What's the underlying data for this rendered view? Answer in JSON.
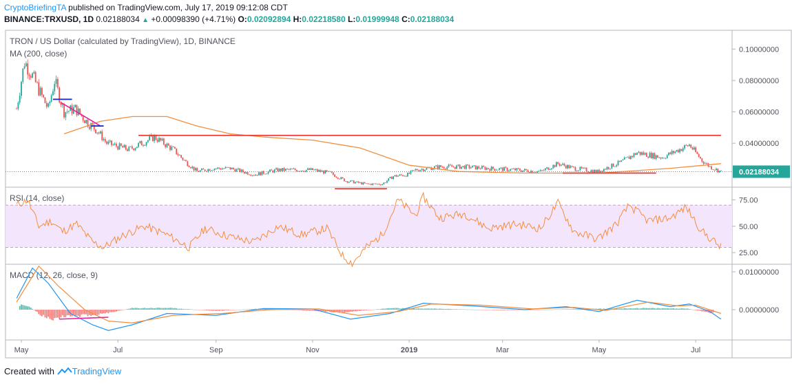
{
  "header": {
    "author": "CryptoBriefingTA",
    "published_text": "published on TradingView.com, July 17, 2019 09:12:08 CDT",
    "symbol_line": "BINANCE:TRXUSD, 1D",
    "last_price": "0.02188034",
    "change": "+0.00098390 (+4.71%)",
    "o_label": "O:",
    "o_value": "0.02092894",
    "h_label": "H:",
    "h_value": "0.02218580",
    "l_label": "L:",
    "l_value": "0.01999948",
    "c_label": "C:",
    "c_value": "0.02188034"
  },
  "footer": {
    "created_with": "Created with",
    "brand": "TradingView"
  },
  "colors": {
    "up": "#26a69a",
    "down": "#ef5350",
    "ma": "#f48d3c",
    "rsi": "#f48d3c",
    "macd": "#2196f3",
    "signal": "#f48d3c",
    "resistance": "#e53935",
    "trend_pink": "#e91e9c",
    "trend_blue": "#1e2bd8",
    "rsi_band": "#f3e5fb"
  },
  "chart_data": [
    {
      "type": "candlestick",
      "title": "TRON / US Dollar (calculated by TradingView), 1D, BINANCE",
      "indicator": "MA (200, close)",
      "y_ticks": [
        "0.10000000",
        "0.08000000",
        "0.06000000",
        "0.04000000"
      ],
      "ylim": [
        0.012,
        0.112
      ],
      "last_price_label": "0.02188034",
      "x_labels": [
        "May",
        "Jul",
        "Sep",
        "Nov",
        "2019",
        "Mar",
        "May",
        "Jul"
      ],
      "price_path": [
        [
          "2018-04-28",
          0.062
        ],
        [
          "2018-05-03",
          0.092
        ],
        [
          "2018-05-07",
          0.085
        ],
        [
          "2018-05-13",
          0.072
        ],
        [
          "2018-05-18",
          0.062
        ],
        [
          "2018-05-22",
          0.08
        ],
        [
          "2018-05-28",
          0.06
        ],
        [
          "2018-06-04",
          0.062
        ],
        [
          "2018-06-12",
          0.053
        ],
        [
          "2018-06-18",
          0.048
        ],
        [
          "2018-06-24",
          0.04
        ],
        [
          "2018-07-01",
          0.038
        ],
        [
          "2018-07-08",
          0.036
        ],
        [
          "2018-07-16",
          0.04
        ],
        [
          "2018-07-24",
          0.044
        ],
        [
          "2018-08-05",
          0.036
        ],
        [
          "2018-08-13",
          0.028
        ],
        [
          "2018-08-20",
          0.022
        ],
        [
          "2018-08-30",
          0.024
        ],
        [
          "2018-09-10",
          0.024
        ],
        [
          "2018-09-25",
          0.02
        ],
        [
          "2018-10-10",
          0.023
        ],
        [
          "2018-10-20",
          0.023
        ],
        [
          "2018-11-01",
          0.023
        ],
        [
          "2018-11-12",
          0.021
        ],
        [
          "2018-11-22",
          0.016
        ],
        [
          "2018-12-05",
          0.014
        ],
        [
          "2018-12-15",
          0.014
        ],
        [
          "2018-12-22",
          0.019
        ],
        [
          "2018-12-31",
          0.02
        ],
        [
          "2019-01-05",
          0.023
        ],
        [
          "2019-01-20",
          0.025
        ],
        [
          "2019-02-05",
          0.025
        ],
        [
          "2019-02-20",
          0.024
        ],
        [
          "2019-03-10",
          0.023
        ],
        [
          "2019-03-25",
          0.022
        ],
        [
          "2019-04-05",
          0.027
        ],
        [
          "2019-04-15",
          0.024
        ],
        [
          "2019-04-30",
          0.022
        ],
        [
          "2019-05-15",
          0.028
        ],
        [
          "2019-05-25",
          0.034
        ],
        [
          "2019-06-10",
          0.031
        ],
        [
          "2019-06-27",
          0.039
        ],
        [
          "2019-07-05",
          0.029
        ],
        [
          "2019-07-10",
          0.025
        ],
        [
          "2019-07-17",
          0.02188
        ]
      ],
      "ma_path": [
        [
          "2018-05-28",
          0.046
        ],
        [
          "2018-06-20",
          0.054
        ],
        [
          "2018-07-10",
          0.057
        ],
        [
          "2018-08-01",
          0.057
        ],
        [
          "2018-08-20",
          0.051
        ],
        [
          "2018-09-10",
          0.046
        ],
        [
          "2018-10-01",
          0.044
        ],
        [
          "2018-11-01",
          0.042
        ],
        [
          "2018-12-01",
          0.037
        ],
        [
          "2019-01-01",
          0.026
        ],
        [
          "2019-02-01",
          0.022
        ],
        [
          "2019-03-15",
          0.021
        ],
        [
          "2019-05-01",
          0.021
        ],
        [
          "2019-06-15",
          0.024
        ],
        [
          "2019-07-17",
          0.027
        ]
      ],
      "annotations": [
        {
          "kind": "resistance",
          "from": "2018-07-14",
          "to": "2019-07-17",
          "value": 0.045
        },
        {
          "kind": "support",
          "from": "2018-11-15",
          "to": "2018-12-18",
          "value": 0.011
        },
        {
          "kind": "support",
          "from": "2019-04-08",
          "to": "2019-06-06",
          "value": 0.021
        },
        {
          "kind": "trend",
          "from": [
            "2018-05-26",
            0.066
          ],
          "to": [
            "2018-06-20",
            0.051
          ]
        },
        {
          "kind": "level",
          "from": "2018-05-21",
          "to": "2018-06-02",
          "value": 0.068
        },
        {
          "kind": "level",
          "from": "2018-06-14",
          "to": "2018-06-22",
          "value": 0.051
        }
      ]
    },
    {
      "type": "line",
      "title": "RSI (14, close)",
      "y_ticks": [
        "75.00",
        "50.00",
        "25.00"
      ],
      "band": [
        30,
        70
      ],
      "ylim": [
        14,
        87
      ],
      "points": [
        [
          "2018-04-28",
          70
        ],
        [
          "2018-05-05",
          75
        ],
        [
          "2018-05-12",
          50
        ],
        [
          "2018-05-20",
          55
        ],
        [
          "2018-05-27",
          45
        ],
        [
          "2018-06-05",
          52
        ],
        [
          "2018-06-15",
          35
        ],
        [
          "2018-06-22",
          30
        ],
        [
          "2018-07-05",
          42
        ],
        [
          "2018-07-18",
          50
        ],
        [
          "2018-08-01",
          42
        ],
        [
          "2018-08-15",
          30
        ],
        [
          "2018-08-25",
          48
        ],
        [
          "2018-09-10",
          40
        ],
        [
          "2018-09-25",
          35
        ],
        [
          "2018-10-10",
          50
        ],
        [
          "2018-10-25",
          42
        ],
        [
          "2018-11-10",
          48
        ],
        [
          "2018-11-20",
          22
        ],
        [
          "2018-11-26",
          15
        ],
        [
          "2018-12-05",
          30
        ],
        [
          "2018-12-15",
          42
        ],
        [
          "2018-12-25",
          75
        ],
        [
          "2019-01-05",
          60
        ],
        [
          "2019-01-10",
          78
        ],
        [
          "2019-01-20",
          58
        ],
        [
          "2019-02-05",
          62
        ],
        [
          "2019-02-20",
          48
        ],
        [
          "2019-03-10",
          52
        ],
        [
          "2019-03-25",
          48
        ],
        [
          "2019-04-05",
          72
        ],
        [
          "2019-04-15",
          45
        ],
        [
          "2019-04-30",
          38
        ],
        [
          "2019-05-12",
          52
        ],
        [
          "2019-05-20",
          70
        ],
        [
          "2019-06-01",
          55
        ],
        [
          "2019-06-15",
          58
        ],
        [
          "2019-06-25",
          68
        ],
        [
          "2019-07-05",
          45
        ],
        [
          "2019-07-17",
          30
        ]
      ]
    },
    {
      "type": "line",
      "title": "MACD (12, 26, close, 9)",
      "y_ticks": [
        "0.01000000",
        "0.00000000"
      ],
      "ylim": [
        -0.008,
        0.012
      ],
      "series": [
        {
          "points": [
            [
              "2018-04-28",
              0.003
            ],
            [
              "2018-05-08",
              0.011
            ],
            [
              "2018-05-18",
              0.007
            ],
            [
              "2018-06-01",
              -0.001
            ],
            [
              "2018-06-15",
              -0.004
            ],
            [
              "2018-06-25",
              -0.0055
            ],
            [
              "2018-07-10",
              -0.004
            ],
            [
              "2018-08-01",
              -0.001
            ],
            [
              "2018-09-01",
              -0.0015
            ],
            [
              "2018-10-01",
              0.0003
            ],
            [
              "2018-11-01",
              0.0002
            ],
            [
              "2018-11-25",
              -0.0025
            ],
            [
              "2018-12-20",
              -0.001
            ],
            [
              "2019-01-10",
              0.0017
            ],
            [
              "2019-02-10",
              0.001
            ],
            [
              "2019-03-15",
              0.0
            ],
            [
              "2019-04-10",
              0.0008
            ],
            [
              "2019-05-01",
              -0.0005
            ],
            [
              "2019-05-25",
              0.0025
            ],
            [
              "2019-06-15",
              0.0008
            ],
            [
              "2019-06-27",
              0.0015
            ],
            [
              "2019-07-10",
              -0.0005
            ],
            [
              "2019-07-17",
              -0.0025
            ]
          ]
        },
        {
          "points": [
            [
              "2018-04-28",
              0.002
            ],
            [
              "2018-05-12",
              0.0115
            ],
            [
              "2018-05-25",
              0.006
            ],
            [
              "2018-06-10",
              0.0
            ],
            [
              "2018-06-25",
              -0.003
            ],
            [
              "2018-07-10",
              -0.0035
            ],
            [
              "2018-08-05",
              -0.0015
            ],
            [
              "2018-09-05",
              -0.001
            ],
            [
              "2018-10-05",
              0.0
            ],
            [
              "2018-11-05",
              0.0002
            ],
            [
              "2018-11-30",
              -0.0015
            ],
            [
              "2018-12-25",
              -0.0005
            ],
            [
              "2019-01-15",
              0.0015
            ],
            [
              "2019-02-15",
              0.0012
            ],
            [
              "2019-03-20",
              0.0002
            ],
            [
              "2019-04-15",
              0.0006
            ],
            [
              "2019-05-05",
              -0.0002
            ],
            [
              "2019-06-01",
              0.002
            ],
            [
              "2019-06-20",
              0.001
            ],
            [
              "2019-07-01",
              0.0012
            ],
            [
              "2019-07-17",
              -0.001
            ]
          ]
        }
      ],
      "histogram": [
        [
          "2018-04-30",
          0.0015
        ],
        [
          "2018-05-06",
          0.001
        ],
        [
          "2018-05-14",
          -0.002
        ],
        [
          "2018-05-22",
          -0.003
        ],
        [
          "2018-05-30",
          -0.002
        ],
        [
          "2018-06-07",
          -0.002
        ],
        [
          "2018-06-20",
          -0.0015
        ],
        [
          "2018-07-10",
          0.0005
        ],
        [
          "2018-08-01",
          0.0006
        ],
        [
          "2018-09-01",
          -0.0004
        ],
        [
          "2018-10-01",
          0.0004
        ],
        [
          "2018-11-20",
          -0.0009
        ],
        [
          "2018-12-20",
          0.0005
        ],
        [
          "2019-01-20",
          0.0003
        ],
        [
          "2019-03-01",
          -0.0002
        ],
        [
          "2019-05-25",
          0.0005
        ],
        [
          "2019-06-25",
          0.0004
        ],
        [
          "2019-07-12",
          -0.0012
        ]
      ],
      "annotations": [
        {
          "kind": "trend",
          "from": [
            "2018-05-25",
            -0.0025
          ],
          "to": [
            "2018-06-25",
            -0.002
          ]
        }
      ]
    }
  ]
}
